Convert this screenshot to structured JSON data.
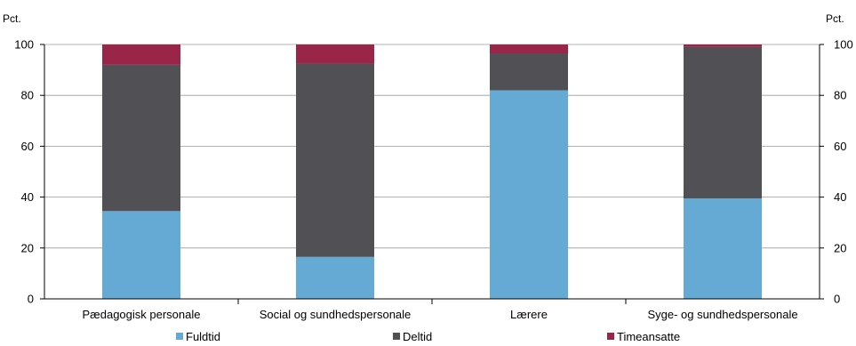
{
  "chart_data": {
    "type": "bar",
    "stacked": true,
    "categories": [
      "Pædagogisk personale",
      "Social og sundhedspersonale",
      "Lærere",
      "Syge- og sundhedspersonale"
    ],
    "series": [
      {
        "name": "Fuldtid",
        "values": [
          34.5,
          16.5,
          82,
          39.5
        ],
        "color": "#65a9d5"
      },
      {
        "name": "Deltid",
        "values": [
          57.5,
          76,
          14.5,
          59.5
        ],
        "color": "#505055"
      },
      {
        "name": "Timeansatte",
        "values": [
          8,
          7.5,
          3.5,
          1
        ],
        "color": "#992649"
      }
    ],
    "y_unit_left": "Pct.",
    "y_unit_right": "Pct.",
    "ylim": [
      0,
      100
    ],
    "yticks": [
      0,
      20,
      40,
      60,
      80,
      100
    ],
    "grid": true,
    "legend_position": "bottom"
  }
}
